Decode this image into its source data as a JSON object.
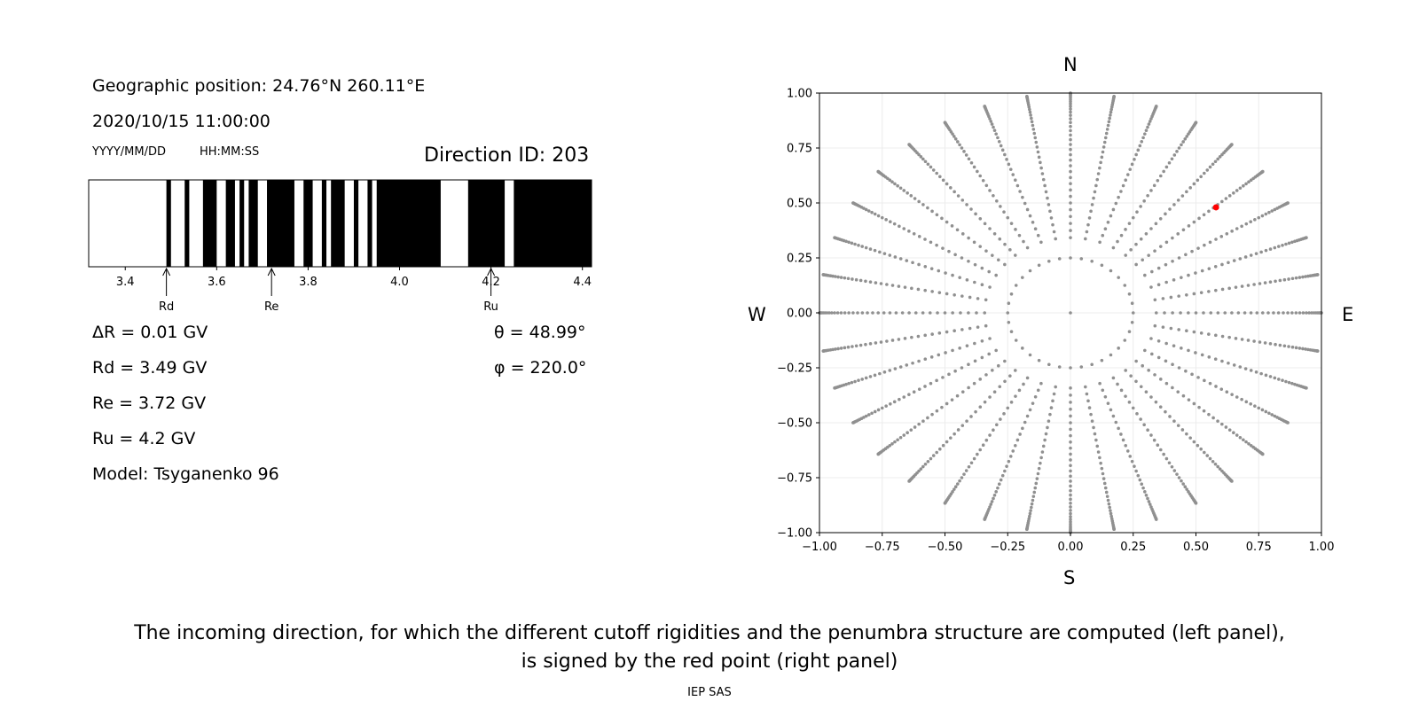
{
  "left_panel": {
    "geo_position": "Geographic position: 24.76°N 260.11°E",
    "datetime": "2020/10/15 11:00:00",
    "date_format": "YYYY/MM/DD",
    "time_format": "HH:MM:SS",
    "direction_id": "Direction ID: 203",
    "delta_r": "ΔR = 0.01 GV",
    "rd": "Rd = 3.49 GV",
    "re": "Re = 3.72 GV",
    "ru": "Ru = 4.2 GV",
    "model": "Model: Tsyganenko 96",
    "theta": "θ = 48.99°",
    "phi": "φ = 220.0°"
  },
  "compass": {
    "north": "N",
    "south": "S",
    "west": "W",
    "east": "E"
  },
  "caption": {
    "line1": "The incoming direction, for which the different cutoff rigidities and the penumbra structure are computed (left panel),",
    "line2": "is signed by the red point (right panel)"
  },
  "credit": "IEP SAS",
  "colors": {
    "red_point": "#ff0000",
    "grid_points": "#909090",
    "bar": "#000000"
  },
  "chart_data": [
    {
      "type": "bar",
      "description_kind": "penumbra",
      "xlim": [
        3.32,
        4.42
      ],
      "xticks": [
        3.4,
        3.6,
        3.8,
        4.0,
        4.2,
        4.4
      ],
      "tick_labels": [
        "3.4",
        "3.6",
        "3.8",
        "4.0",
        "4.2",
        "4.4"
      ],
      "forbidden_intervals": [
        [
          3.49,
          3.5
        ],
        [
          3.53,
          3.54
        ],
        [
          3.57,
          3.6
        ],
        [
          3.62,
          3.64
        ],
        [
          3.65,
          3.66
        ],
        [
          3.67,
          3.69
        ],
        [
          3.71,
          3.77
        ],
        [
          3.79,
          3.81
        ],
        [
          3.83,
          3.84
        ],
        [
          3.85,
          3.88
        ],
        [
          3.9,
          3.91
        ],
        [
          3.93,
          3.94
        ],
        [
          3.95,
          4.09
        ],
        [
          4.15,
          4.23
        ],
        [
          4.25,
          4.42
        ]
      ],
      "markers": [
        {
          "label": "Rd",
          "value": 3.49
        },
        {
          "label": "Re",
          "value": 3.72
        },
        {
          "label": "Ru",
          "value": 4.2
        }
      ]
    },
    {
      "type": "scatter",
      "xlim": [
        -1.0,
        1.0
      ],
      "ylim": [
        -1.0,
        1.0
      ],
      "xticks": [
        -1.0,
        -0.75,
        -0.5,
        -0.25,
        0.0,
        0.25,
        0.5,
        0.75,
        1.0
      ],
      "yticks": [
        -1.0,
        -0.75,
        -0.5,
        -0.25,
        0.0,
        0.25,
        0.5,
        0.75,
        1.0
      ],
      "xtick_labels": [
        "−1.00",
        "−0.75",
        "−0.50",
        "−0.25",
        "0.00",
        "0.25",
        "0.50",
        "0.75",
        "1.00"
      ],
      "ytick_labels": [
        "−1.00",
        "−0.75",
        "−0.50",
        "−0.25",
        "0.00",
        "0.25",
        "0.50",
        "0.75",
        "1.00"
      ],
      "grid": true,
      "direction_grid": {
        "azimuth_step_deg": 10,
        "zenith_max_deg": 90,
        "inner_ring_radius": 0.25,
        "inner_ring_points": 36,
        "ray_start_radius": 0.25,
        "ray_count": 36,
        "ray_offset_deg": 0
      },
      "highlight": {
        "x": 0.58,
        "y": 0.48
      }
    }
  ]
}
